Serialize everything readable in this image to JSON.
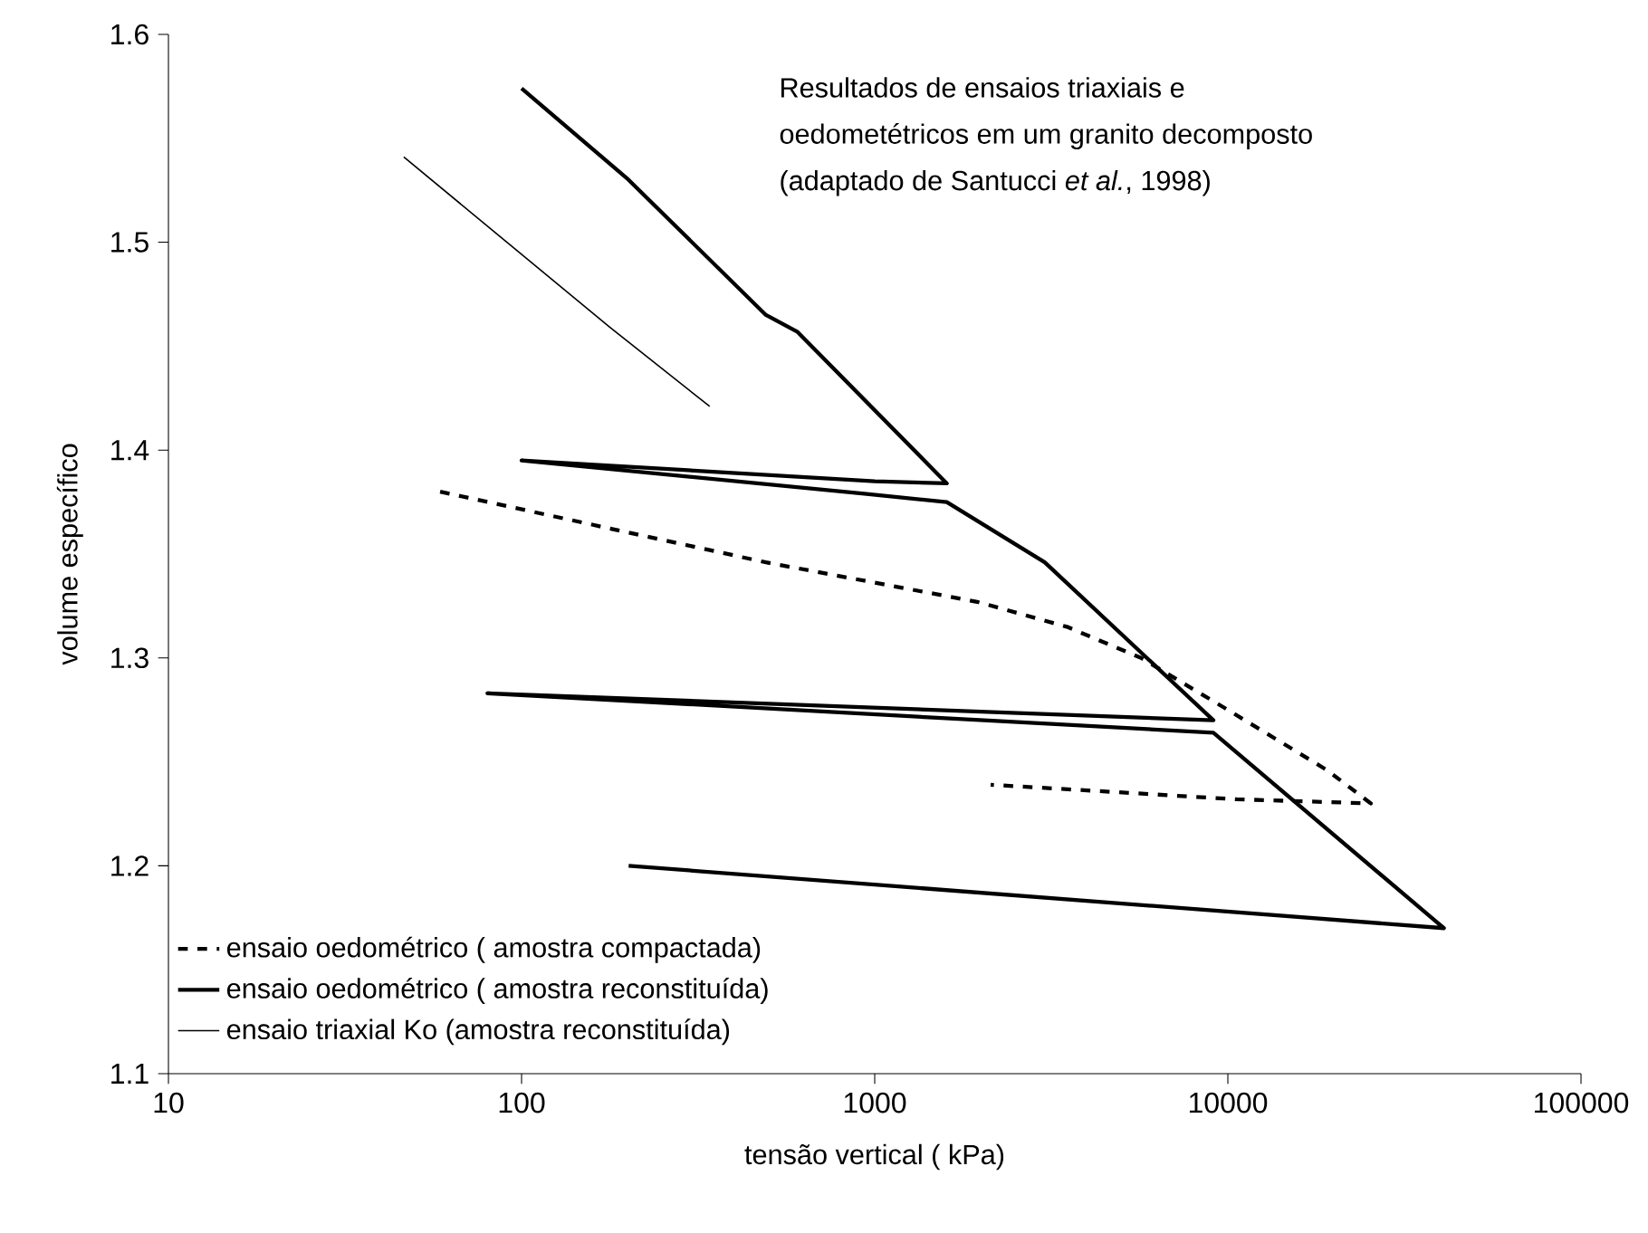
{
  "chart_data": {
    "type": "line",
    "xlabel": "tensão vertical ( kPa)",
    "ylabel": "volume específico",
    "annotations": [
      "Resultados de ensaios triaxiais e",
      "oedometétricos em um granito decomposto",
      "(adaptado de Santucci *et al.*, 1998)"
    ],
    "log": "x",
    "xlim": [
      10,
      100000
    ],
    "xticks": [
      10,
      100,
      1000,
      10000,
      100000
    ],
    "ylim": [
      1.1,
      1.6
    ],
    "yticks": [
      1.1,
      1.2,
      1.3,
      1.4,
      1.5,
      1.6
    ],
    "grid": false,
    "legend": "bottom left",
    "marker": "none",
    "series": [
      {
        "name": "ensaio oedométrico ( amostra compactada)",
        "color": "#000000",
        "line_style": "dashed",
        "x": [
          58.8,
          492,
          1950,
          3500,
          5680,
          10000,
          19100,
          25400,
          10600,
          2130
        ],
        "values": [
          1.38,
          1.346,
          1.327,
          1.315,
          1.3,
          1.275,
          1.246,
          1.23,
          1.232,
          1.239
        ]
      },
      {
        "name": "ensaio oedométrico ( amostra reconstituída)",
        "color": "#000000",
        "line_style": "solid",
        "x": [
          100,
          201,
          492,
          603,
          1600,
          1000,
          100,
          935,
          1600,
          3030,
          9100,
          80,
          2040,
          9100,
          40900,
          201
        ],
        "values": [
          1.574,
          1.53,
          1.465,
          1.457,
          1.384,
          1.385,
          1.395,
          1.379,
          1.375,
          1.346,
          1.27,
          1.283,
          1.27,
          1.264,
          1.17,
          1.2
        ]
      },
      {
        "name": "ensaio triaxial Ko (amostra reconstituída)",
        "color": "#000000",
        "line_style": "solid",
        "x": [
          46.4,
          178,
          341
        ],
        "values": [
          1.541,
          1.459,
          1.421
        ]
      }
    ]
  }
}
